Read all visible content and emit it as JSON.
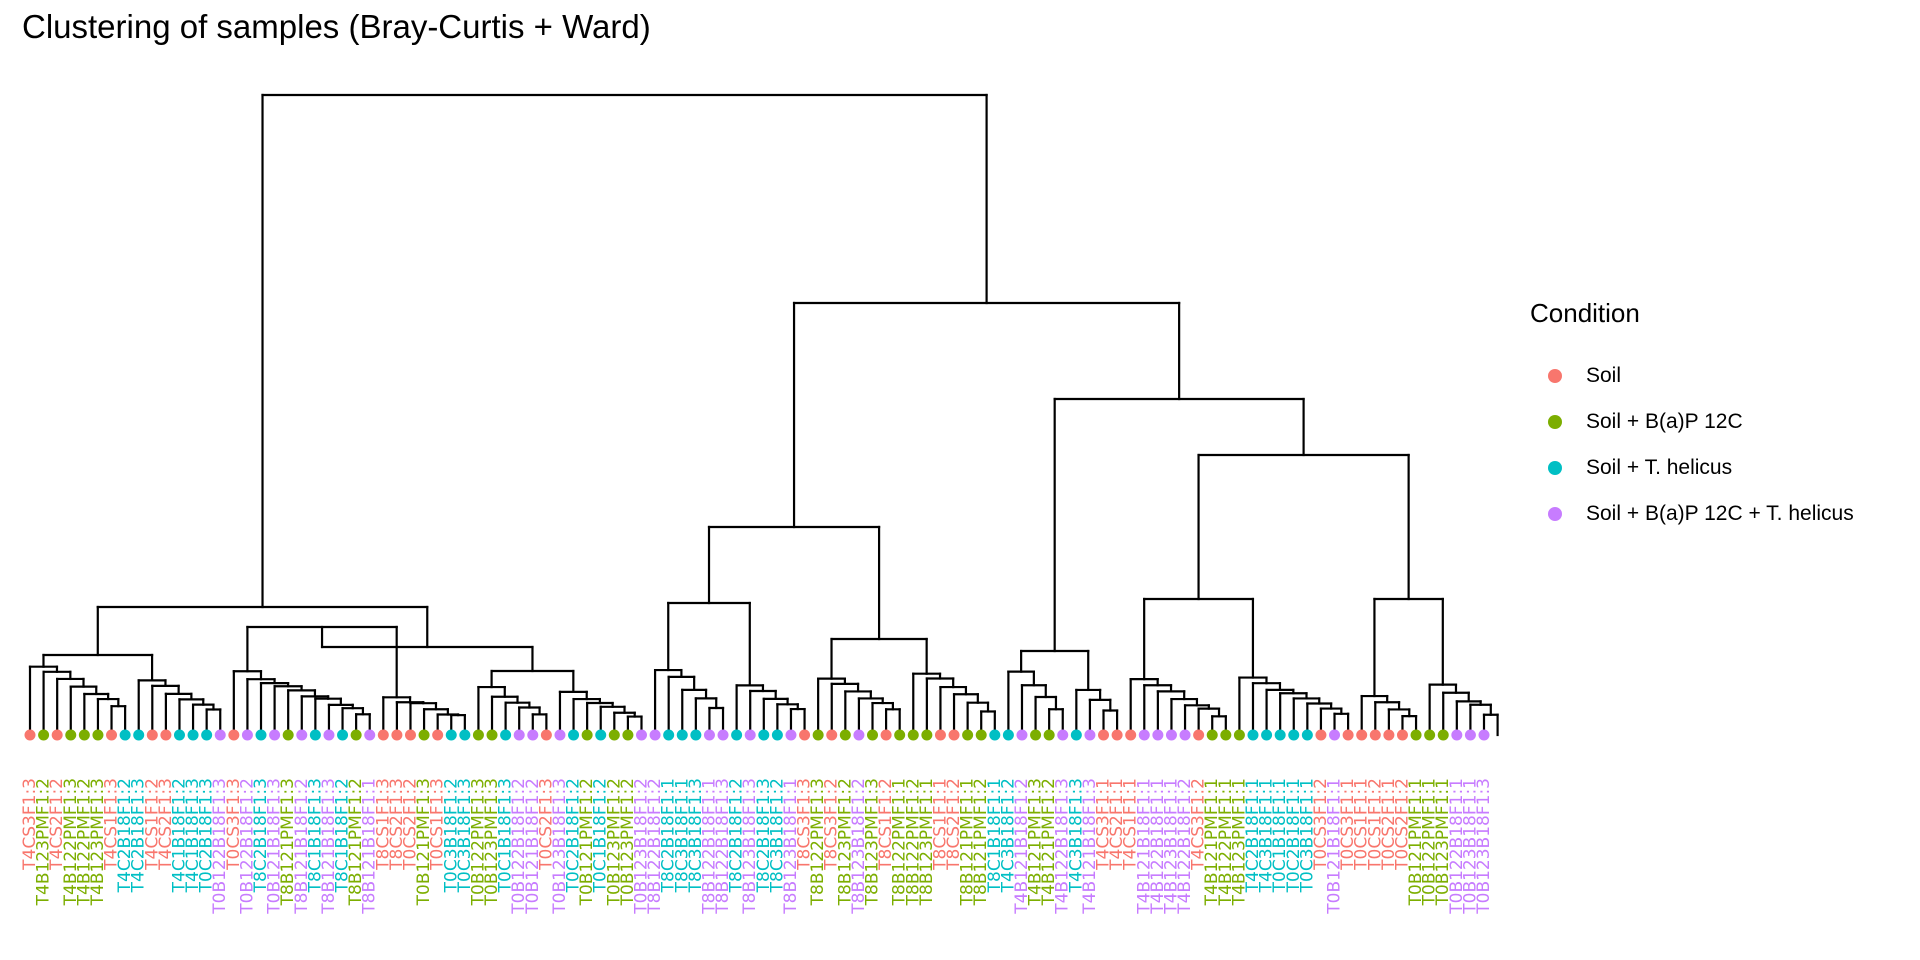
{
  "chart_data": {
    "type": "dendrogram",
    "title": "Clustering of samples (Bray-Curtis + Ward)",
    "legend": {
      "title": "Condition",
      "position": "right",
      "items": [
        {
          "label": "Soil",
          "color": "#F8766D"
        },
        {
          "label": "Soil + B(a)P 12C",
          "color": "#7CAE00"
        },
        {
          "label": "Soil + T. helicus",
          "color": "#00BFC4"
        },
        {
          "label": "Soil + B(a)P 12C + T. helicus",
          "color": "#C77CFF"
        }
      ]
    },
    "leaves": [
      {
        "label": "T4CS3F1:3",
        "group": 0
      },
      {
        "label": "T4B123PMF1:2",
        "group": 1
      },
      {
        "label": "T4CS2F1:2",
        "group": 0
      },
      {
        "label": "T4B122PMF1:3",
        "group": 1
      },
      {
        "label": "T4B122PMF1:2",
        "group": 1
      },
      {
        "label": "T4B123PMF1:3",
        "group": 1
      },
      {
        "label": "T4CS1F1:3",
        "group": 0
      },
      {
        "label": "T4C2B18F1:2",
        "group": 2
      },
      {
        "label": "T4C2B18F1:3",
        "group": 2
      },
      {
        "label": "T4CS1F1:2",
        "group": 0
      },
      {
        "label": "T4CS2F1:3",
        "group": 0
      },
      {
        "label": "T4C1B18F1:2",
        "group": 2
      },
      {
        "label": "T4C1B18F1:3",
        "group": 2
      },
      {
        "label": "T0C2B18F1:3",
        "group": 2
      },
      {
        "label": "T0B122B18F1:3",
        "group": 3
      },
      {
        "label": "T0CS3F1:3",
        "group": 0
      },
      {
        "label": "T0B122B18F1:2",
        "group": 3
      },
      {
        "label": "T8C2B18F1:3",
        "group": 2
      },
      {
        "label": "T0B121B18F1:3",
        "group": 3
      },
      {
        "label": "T8B121PMF1:3",
        "group": 1
      },
      {
        "label": "T8B121B18F1:2",
        "group": 3
      },
      {
        "label": "T8C1B18F1:3",
        "group": 2
      },
      {
        "label": "T8B121B18F1:3",
        "group": 3
      },
      {
        "label": "T8C1B18F1:2",
        "group": 2
      },
      {
        "label": "T8B121PMF1:2",
        "group": 1
      },
      {
        "label": "T8B121B18F1:1",
        "group": 3
      },
      {
        "label": "T8CS1F1:3",
        "group": 0
      },
      {
        "label": "T8CS2F1:3",
        "group": 0
      },
      {
        "label": "T0CS2F1:2",
        "group": 0
      },
      {
        "label": "T0B121PMF1:3",
        "group": 1
      },
      {
        "label": "T0CS1F1:3",
        "group": 0
      },
      {
        "label": "T0C3B18F1:2",
        "group": 2
      },
      {
        "label": "T0C3B18F1:3",
        "group": 2
      },
      {
        "label": "T0B122PMF1:3",
        "group": 1
      },
      {
        "label": "T0B123PMF1:3",
        "group": 1
      },
      {
        "label": "T0C1B18F1:3",
        "group": 2
      },
      {
        "label": "T0B122B18F1:2",
        "group": 3
      },
      {
        "label": "T0B121B18F1:2",
        "group": 3
      },
      {
        "label": "T0CS2F1:3",
        "group": 0
      },
      {
        "label": "T0B123B18F1:3",
        "group": 3
      },
      {
        "label": "T0C2B18F1:2",
        "group": 2
      },
      {
        "label": "T0B121PMF1:2",
        "group": 1
      },
      {
        "label": "T0C1B18F1:2",
        "group": 2
      },
      {
        "label": "T0B123PMF1:2",
        "group": 1
      },
      {
        "label": "T0B123PMF1:2",
        "group": 1
      },
      {
        "label": "T0B123B18F1:2",
        "group": 3
      },
      {
        "label": "T8B122B18F1:2",
        "group": 3
      },
      {
        "label": "T8C2B18F1:1",
        "group": 2
      },
      {
        "label": "T8C3B18F1:1",
        "group": 2
      },
      {
        "label": "T8C3B18F1:3",
        "group": 2
      },
      {
        "label": "T8B122B18F1:1",
        "group": 3
      },
      {
        "label": "T8B122B18F1:3",
        "group": 3
      },
      {
        "label": "T8C2B18F1:2",
        "group": 2
      },
      {
        "label": "T8B123B18F1:3",
        "group": 3
      },
      {
        "label": "T8C2B18F1:3",
        "group": 2
      },
      {
        "label": "T8C3B18F1:2",
        "group": 2
      },
      {
        "label": "T8B123B18F1:1",
        "group": 3
      },
      {
        "label": "T8CS3F1:3",
        "group": 0
      },
      {
        "label": "T8B122PMF1:3",
        "group": 1
      },
      {
        "label": "T8CS3F1:2",
        "group": 0
      },
      {
        "label": "T8B123PMF1:2",
        "group": 1
      },
      {
        "label": "T8B123B18F1:2",
        "group": 3
      },
      {
        "label": "T8B123PMF1:3",
        "group": 1
      },
      {
        "label": "T8CS1F1:2",
        "group": 0
      },
      {
        "label": "T8B122PMF1:1",
        "group": 1
      },
      {
        "label": "T8B122PMF1:2",
        "group": 1
      },
      {
        "label": "T8B123PMF1:1",
        "group": 1
      },
      {
        "label": "T8CS1F1:1",
        "group": 0
      },
      {
        "label": "T8CS2F1:2",
        "group": 0
      },
      {
        "label": "T8B121PMF1:1",
        "group": 1
      },
      {
        "label": "T8B121PMF1:2",
        "group": 1
      },
      {
        "label": "T8C1B18F1:1",
        "group": 2
      },
      {
        "label": "T4C3B18F1:2",
        "group": 2
      },
      {
        "label": "T4B121B18F1:2",
        "group": 3
      },
      {
        "label": "T4B121PMF1:3",
        "group": 1
      },
      {
        "label": "T4B121PMF1:2",
        "group": 1
      },
      {
        "label": "T4B122B18F1:3",
        "group": 3
      },
      {
        "label": "T4C3B18F1:3",
        "group": 2
      },
      {
        "label": "T4B121B18F1:3",
        "group": 3
      },
      {
        "label": "T4CS3F1:1",
        "group": 0
      },
      {
        "label": "T4CS2F1:1",
        "group": 0
      },
      {
        "label": "T4CS1F1:1",
        "group": 0
      },
      {
        "label": "T4B121B18F1:1",
        "group": 3
      },
      {
        "label": "T4B122B18F1:1",
        "group": 3
      },
      {
        "label": "T4B123B18F1:1",
        "group": 3
      },
      {
        "label": "T4B122B18F1:2",
        "group": 3
      },
      {
        "label": "T4CS3F1:2",
        "group": 0
      },
      {
        "label": "T4B121PMF1:1",
        "group": 1
      },
      {
        "label": "T4B122PMF1:1",
        "group": 1
      },
      {
        "label": "T4B123PMF1:1",
        "group": 1
      },
      {
        "label": "T4C2B18F1:1",
        "group": 2
      },
      {
        "label": "T4C3B18F1:1",
        "group": 2
      },
      {
        "label": "T0C1B18F1:1",
        "group": 2
      },
      {
        "label": "T0C2B18F1:1",
        "group": 2
      },
      {
        "label": "T0C3B18F1:1",
        "group": 2
      },
      {
        "label": "T0CS3F1:2",
        "group": 0
      },
      {
        "label": "T0B121B18F1:1",
        "group": 3
      },
      {
        "label": "T0CS3F1:1",
        "group": 0
      },
      {
        "label": "T0CS1F1:1",
        "group": 0
      },
      {
        "label": "T0CS1F1:2",
        "group": 0
      },
      {
        "label": "T0CS2F1:1",
        "group": 0
      },
      {
        "label": "T0CS2F1:2",
        "group": 0
      },
      {
        "label": "T0B121PMF1:1",
        "group": 1
      },
      {
        "label": "T0B122PMF1:1",
        "group": 1
      },
      {
        "label": "T0B123PMF1:1",
        "group": 1
      },
      {
        "label": "T0B122B18F1:1",
        "group": 3
      },
      {
        "label": "T0B123B18F1:1",
        "group": 3
      },
      {
        "label": "T0B123B18F1:3",
        "group": 3
      }
    ]
  }
}
